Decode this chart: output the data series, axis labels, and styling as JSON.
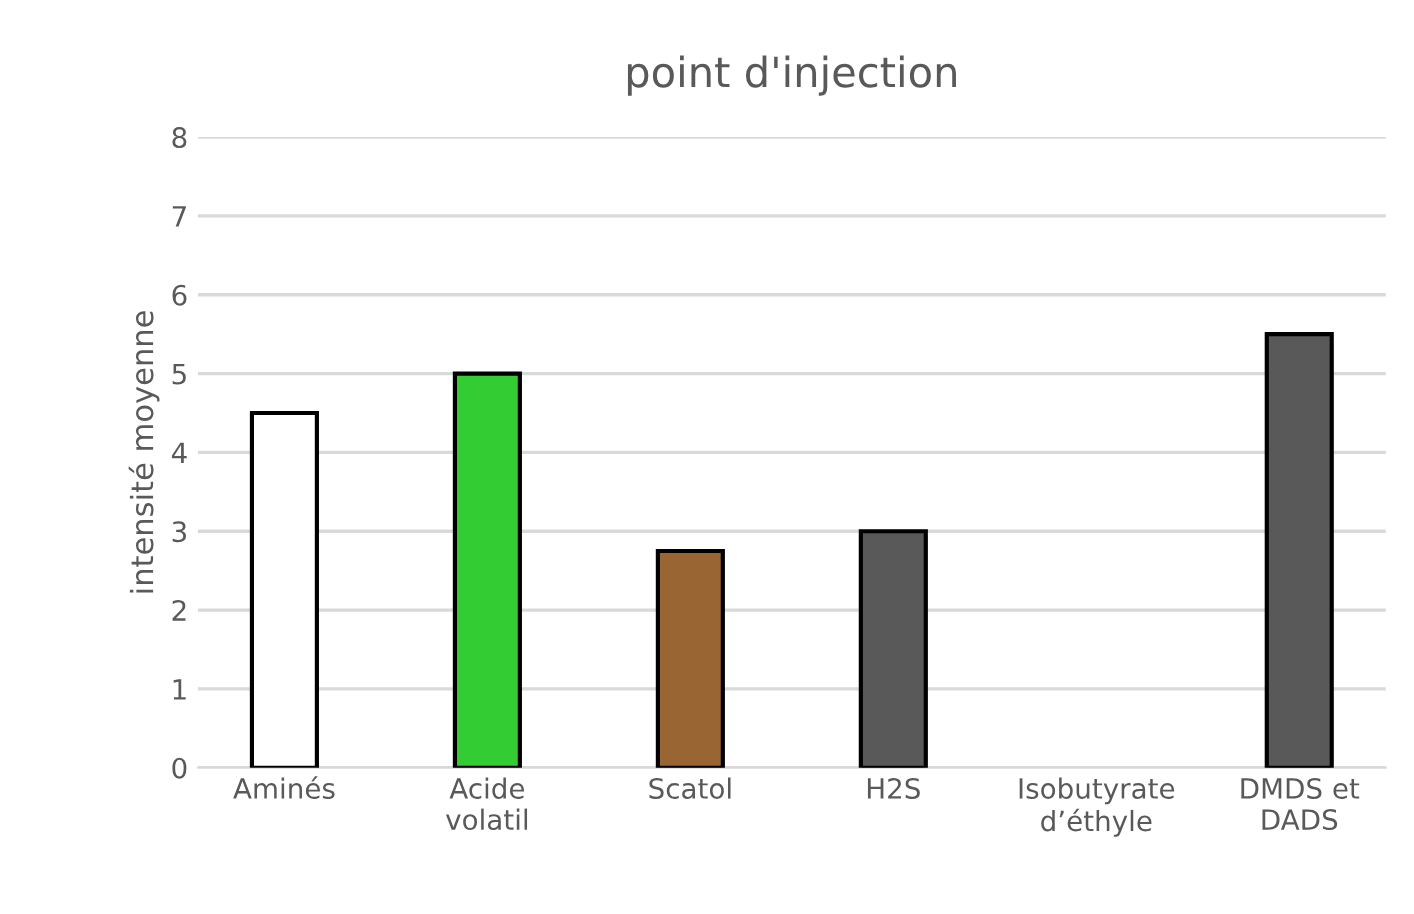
{
  "chart_data": {
    "type": "bar",
    "title": "point d'injection",
    "ylabel": "intensité moyenne",
    "categories": [
      "Aminés",
      "Acide\nvolatil",
      "Scatol",
      "H2S",
      "Isobutyrate\nd’éthyle",
      "DMDS et\nDADS"
    ],
    "values": [
      4.5,
      5,
      2.75,
      3,
      null,
      5.5
    ],
    "colors": [
      "#ffffff",
      "#33cc33",
      "#996633",
      "#595959",
      null,
      "#595959"
    ],
    "ylim": [
      0,
      8
    ],
    "yticks": [
      0,
      1,
      2,
      3,
      4,
      5,
      6,
      7,
      8
    ],
    "grid": "y",
    "legend": false
  }
}
